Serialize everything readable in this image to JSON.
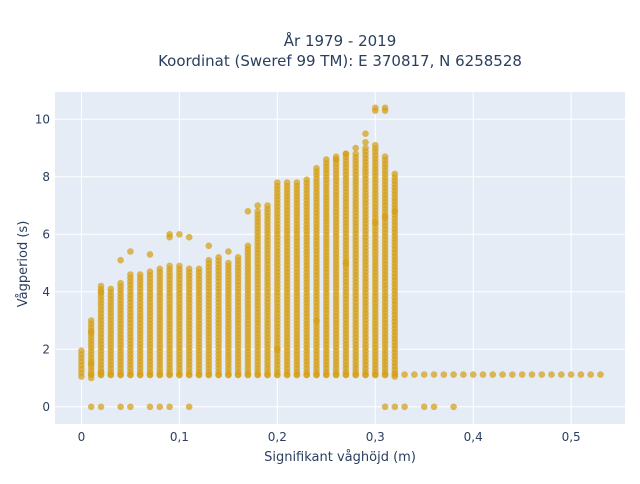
{
  "chart_data": {
    "type": "scatter",
    "title_line1": "År 1979 - 2019",
    "title_line2": "Koordinat (Sweref 99 TM): E 370817, N 6258528",
    "xlabel": "Signifikant våghöjd (m)",
    "ylabel": "Vågperiod (s)",
    "xlim": [
      -0.027,
      0.555
    ],
    "ylim": [
      -0.6,
      10.95
    ],
    "x_ticks": [
      0,
      0.1,
      0.2,
      0.3,
      0.4,
      0.5
    ],
    "x_tick_labels": [
      "0",
      "0,1",
      "0,2",
      "0,3",
      "0,4",
      "0,5"
    ],
    "y_ticks": [
      0,
      2,
      4,
      6,
      8,
      10
    ],
    "y_tick_labels": [
      "0",
      "2",
      "4",
      "6",
      "8",
      "10"
    ],
    "grid": true,
    "plot_background": "#e5ecf6",
    "grid_color": "#ffffff",
    "marker_color": "#d4a017",
    "marker_opacity": 0.72,
    "x_step": 0.01,
    "columns": [
      {
        "x": 0.0,
        "ymin": 1.05,
        "ymax": 1.95
      },
      {
        "x": 0.01,
        "ymin": 1.0,
        "ymax": 3.0
      },
      {
        "x": 0.02,
        "ymin": 1.1,
        "ymax": 4.2
      },
      {
        "x": 0.03,
        "ymin": 1.1,
        "ymax": 4.1
      },
      {
        "x": 0.04,
        "ymin": 1.1,
        "ymax": 4.3
      },
      {
        "x": 0.05,
        "ymin": 1.1,
        "ymax": 4.6
      },
      {
        "x": 0.06,
        "ymin": 1.1,
        "ymax": 4.6
      },
      {
        "x": 0.07,
        "ymin": 1.1,
        "ymax": 4.7
      },
      {
        "x": 0.08,
        "ymin": 1.1,
        "ymax": 4.8
      },
      {
        "x": 0.09,
        "ymin": 1.1,
        "ymax": 4.9
      },
      {
        "x": 0.1,
        "ymin": 1.1,
        "ymax": 4.9
      },
      {
        "x": 0.11,
        "ymin": 1.1,
        "ymax": 4.8
      },
      {
        "x": 0.12,
        "ymin": 1.1,
        "ymax": 4.8
      },
      {
        "x": 0.13,
        "ymin": 1.1,
        "ymax": 5.1
      },
      {
        "x": 0.14,
        "ymin": 1.1,
        "ymax": 5.2
      },
      {
        "x": 0.15,
        "ymin": 1.1,
        "ymax": 5.0
      },
      {
        "x": 0.16,
        "ymin": 1.1,
        "ymax": 5.2
      },
      {
        "x": 0.17,
        "ymin": 1.1,
        "ymax": 5.6
      },
      {
        "x": 0.18,
        "ymin": 1.1,
        "ymax": 6.8
      },
      {
        "x": 0.19,
        "ymin": 1.1,
        "ymax": 7.0
      },
      {
        "x": 0.2,
        "ymin": 1.1,
        "ymax": 7.8
      },
      {
        "x": 0.21,
        "ymin": 1.1,
        "ymax": 7.8
      },
      {
        "x": 0.22,
        "ymin": 1.1,
        "ymax": 7.8
      },
      {
        "x": 0.23,
        "ymin": 1.1,
        "ymax": 7.9
      },
      {
        "x": 0.24,
        "ymin": 1.1,
        "ymax": 8.3
      },
      {
        "x": 0.25,
        "ymin": 1.1,
        "ymax": 8.6
      },
      {
        "x": 0.26,
        "ymin": 1.1,
        "ymax": 8.7
      },
      {
        "x": 0.27,
        "ymin": 1.1,
        "ymax": 8.8
      },
      {
        "x": 0.28,
        "ymin": 1.1,
        "ymax": 8.8
      },
      {
        "x": 0.29,
        "ymin": 1.1,
        "ymax": 9.0
      },
      {
        "x": 0.3,
        "ymin": 1.1,
        "ymax": 9.1
      },
      {
        "x": 0.31,
        "ymin": 1.1,
        "ymax": 8.7
      },
      {
        "x": 0.32,
        "ymin": 1.05,
        "ymax": 8.1
      }
    ],
    "lower_band": {
      "x_from": 0.01,
      "x_to": 0.53,
      "y": 1.12
    },
    "zero_points_x": [
      0.01,
      0.02,
      0.04,
      0.05,
      0.07,
      0.08,
      0.09,
      0.11,
      0.31,
      0.32,
      0.33,
      0.35,
      0.36,
      0.38
    ],
    "extra_points": [
      [
        0.01,
        2.6
      ],
      [
        0.02,
        4.0
      ],
      [
        0.04,
        5.1
      ],
      [
        0.05,
        5.4
      ],
      [
        0.07,
        5.3
      ],
      [
        0.09,
        5.9
      ],
      [
        0.09,
        6.0
      ],
      [
        0.1,
        6.0
      ],
      [
        0.11,
        5.9
      ],
      [
        0.13,
        5.6
      ],
      [
        0.15,
        5.4
      ],
      [
        0.17,
        6.8
      ],
      [
        0.18,
        7.0
      ],
      [
        0.26,
        8.6
      ],
      [
        0.27,
        8.8
      ],
      [
        0.28,
        9.0
      ],
      [
        0.29,
        9.2
      ],
      [
        0.29,
        9.5
      ],
      [
        0.3,
        10.3
      ],
      [
        0.3,
        10.4
      ],
      [
        0.31,
        10.4
      ],
      [
        0.31,
        10.3
      ],
      [
        0.3,
        6.4
      ],
      [
        0.31,
        6.6
      ],
      [
        0.32,
        6.8
      ],
      [
        0.27,
        5.0
      ],
      [
        0.24,
        3.0
      ],
      [
        0.2,
        2.0
      ],
      [
        0.01,
        1.5
      ],
      [
        0.02,
        1.2
      ]
    ]
  }
}
